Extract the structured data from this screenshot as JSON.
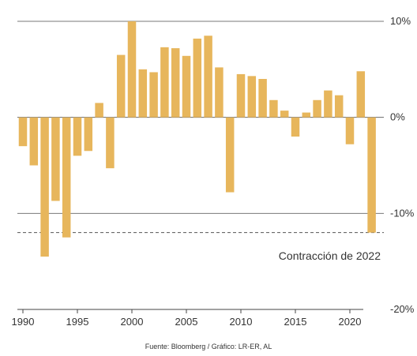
{
  "chart_data": {
    "type": "bar",
    "years": [
      1990,
      1991,
      1992,
      1993,
      1994,
      1995,
      1996,
      1997,
      1998,
      1999,
      2000,
      2001,
      2002,
      2003,
      2004,
      2005,
      2006,
      2007,
      2008,
      2009,
      2010,
      2011,
      2012,
      2013,
      2014,
      2015,
      2016,
      2017,
      2018,
      2019,
      2020,
      2021,
      2022
    ],
    "values": [
      -3.0,
      -5.0,
      -14.5,
      -8.7,
      -12.5,
      -4.0,
      -3.5,
      1.5,
      -5.3,
      6.5,
      10.0,
      5.0,
      4.7,
      7.3,
      7.2,
      6.4,
      8.2,
      8.5,
      5.2,
      -7.8,
      4.5,
      4.3,
      4.0,
      1.8,
      0.7,
      -2.0,
      0.5,
      1.8,
      2.8,
      2.3,
      -2.8,
      4.8,
      -12.0
    ],
    "ylim": [
      -20,
      10
    ],
    "y_ticks": [
      {
        "value": 10,
        "label": "10%"
      },
      {
        "value": 0,
        "label": "0%"
      },
      {
        "value": -10,
        "label": "-10%"
      },
      {
        "value": -20,
        "label": "-20%"
      }
    ],
    "x_tick_years": [
      1990,
      1995,
      2000,
      2005,
      2010,
      2015,
      2020
    ],
    "x_tick_labels": [
      "1990",
      "1995",
      "2000",
      "2005",
      "2010",
      "2015",
      "2020"
    ],
    "reference_line": {
      "value": -12,
      "style": "dashed"
    },
    "annotation": "Contracción de 2022",
    "source": "Fuente: Bloomberg / Gráfico: LR-ER, AL",
    "bar_color": "#e7b65c",
    "grid": true
  }
}
